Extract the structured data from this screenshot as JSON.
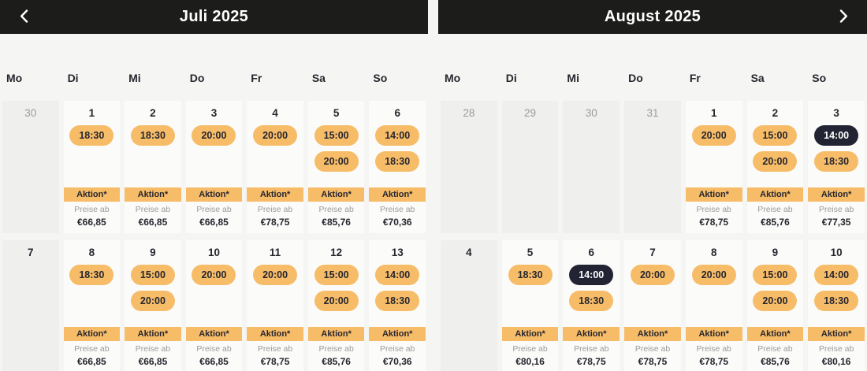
{
  "labels": {
    "aktion": "Aktion*",
    "preise_ab": "Preise ab"
  },
  "colors": {
    "accent_orange": "#f7bc68",
    "selected_navy": "#232433",
    "header_bar": "#1c1c1b",
    "page_bg": "#f5f5f3",
    "card_white": "#fbfbfa",
    "card_gray": "#efefee",
    "muted_text": "#9b9b9b",
    "dark_text": "#26262e"
  },
  "months": [
    {
      "title": "Juli 2025",
      "nav": "prev",
      "weekdays": [
        "Mo",
        "Di",
        "Mi",
        "Do",
        "Fr",
        "Sa",
        "So"
      ],
      "weeks": [
        [
          {
            "day": "30",
            "outside": true
          },
          {
            "day": "1",
            "times": [
              {
                "time": "18:30",
                "selected": false
              }
            ],
            "price": "€66,85"
          },
          {
            "day": "2",
            "times": [
              {
                "time": "18:30",
                "selected": false
              }
            ],
            "price": "€66,85"
          },
          {
            "day": "3",
            "times": [
              {
                "time": "20:00",
                "selected": false
              }
            ],
            "price": "€66,85"
          },
          {
            "day": "4",
            "times": [
              {
                "time": "20:00",
                "selected": false
              }
            ],
            "price": "€78,75"
          },
          {
            "day": "5",
            "times": [
              {
                "time": "15:00",
                "selected": false
              },
              {
                "time": "20:00",
                "selected": false
              }
            ],
            "price": "€85,76"
          },
          {
            "day": "6",
            "times": [
              {
                "time": "14:00",
                "selected": false
              },
              {
                "time": "18:30",
                "selected": false
              }
            ],
            "price": "€70,36"
          }
        ],
        [
          {
            "day": "7"
          },
          {
            "day": "8",
            "times": [
              {
                "time": "18:30",
                "selected": false
              }
            ],
            "price": "€66,85"
          },
          {
            "day": "9",
            "times": [
              {
                "time": "15:00",
                "selected": false
              },
              {
                "time": "20:00",
                "selected": false
              }
            ],
            "price": "€66,85"
          },
          {
            "day": "10",
            "times": [
              {
                "time": "20:00",
                "selected": false
              }
            ],
            "price": "€66,85"
          },
          {
            "day": "11",
            "times": [
              {
                "time": "20:00",
                "selected": false
              }
            ],
            "price": "€78,75"
          },
          {
            "day": "12",
            "times": [
              {
                "time": "15:00",
                "selected": false
              },
              {
                "time": "20:00",
                "selected": false
              }
            ],
            "price": "€85,76"
          },
          {
            "day": "13",
            "times": [
              {
                "time": "14:00",
                "selected": false
              },
              {
                "time": "18:30",
                "selected": false
              }
            ],
            "price": "€70,36"
          }
        ]
      ]
    },
    {
      "title": "August 2025",
      "nav": "next",
      "weekdays": [
        "Mo",
        "Di",
        "Mi",
        "Do",
        "Fr",
        "Sa",
        "So"
      ],
      "weeks": [
        [
          {
            "day": "28",
            "outside": true
          },
          {
            "day": "29",
            "outside": true
          },
          {
            "day": "30",
            "outside": true
          },
          {
            "day": "31",
            "outside": true
          },
          {
            "day": "1",
            "times": [
              {
                "time": "20:00",
                "selected": false
              }
            ],
            "price": "€78,75"
          },
          {
            "day": "2",
            "times": [
              {
                "time": "15:00",
                "selected": false
              },
              {
                "time": "20:00",
                "selected": false
              }
            ],
            "price": "€85,76"
          },
          {
            "day": "3",
            "times": [
              {
                "time": "14:00",
                "selected": true
              },
              {
                "time": "18:30",
                "selected": false
              }
            ],
            "price": "€77,35"
          }
        ],
        [
          {
            "day": "4"
          },
          {
            "day": "5",
            "times": [
              {
                "time": "18:30",
                "selected": false
              }
            ],
            "price": "€80,16"
          },
          {
            "day": "6",
            "times": [
              {
                "time": "14:00",
                "selected": true
              },
              {
                "time": "18:30",
                "selected": false
              }
            ],
            "price": "€78,75"
          },
          {
            "day": "7",
            "times": [
              {
                "time": "20:00",
                "selected": false
              }
            ],
            "price": "€78,75"
          },
          {
            "day": "8",
            "times": [
              {
                "time": "20:00",
                "selected": false
              }
            ],
            "price": "€78,75"
          },
          {
            "day": "9",
            "times": [
              {
                "time": "15:00",
                "selected": false
              },
              {
                "time": "20:00",
                "selected": false
              }
            ],
            "price": "€85,76"
          },
          {
            "day": "10",
            "times": [
              {
                "time": "14:00",
                "selected": false
              },
              {
                "time": "18:30",
                "selected": false
              }
            ],
            "price": "€80,16"
          }
        ]
      ]
    }
  ]
}
